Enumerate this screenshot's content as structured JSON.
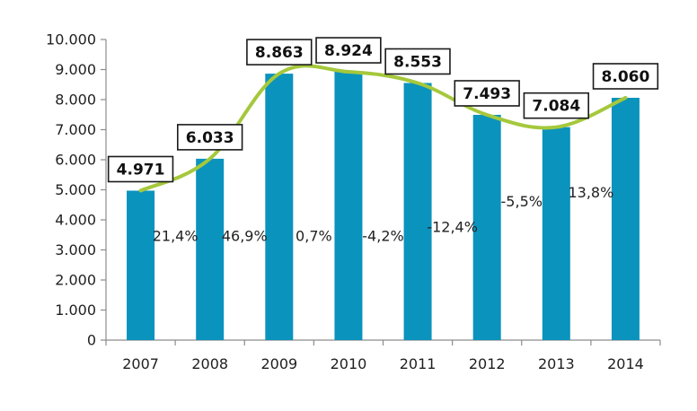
{
  "chart_data": {
    "type": "bar",
    "title": "",
    "xlabel": "",
    "ylabel": "",
    "categories": [
      "2007",
      "2008",
      "2009",
      "2010",
      "2011",
      "2012",
      "2013",
      "2014"
    ],
    "ylim": [
      0,
      10000
    ],
    "yticks": [
      0,
      1000,
      2000,
      3000,
      4000,
      5000,
      6000,
      7000,
      8000,
      9000,
      10000
    ],
    "ytick_labels": [
      "0",
      "1.000",
      "2.000",
      "3.000",
      "4.000",
      "5.000",
      "6.000",
      "7.000",
      "8.000",
      "9.000",
      "10.000"
    ],
    "grid": false,
    "legend": "none",
    "series": [
      {
        "name": "bars",
        "type": "bar",
        "values": [
          4971,
          6033,
          8863,
          8924,
          8553,
          7493,
          7084,
          8060
        ],
        "color": "#0a93bd"
      },
      {
        "name": "trend",
        "type": "line",
        "values": [
          4971,
          6033,
          8863,
          8924,
          8553,
          7493,
          7084,
          8060
        ],
        "color": "#a5c83c"
      }
    ],
    "value_labels": [
      "4.971",
      "6.033",
      "8.863",
      "8.924",
      "8.553",
      "7.493",
      "7.084",
      "8.060"
    ],
    "growth_labels": [
      "21,4%",
      "46,9%",
      "0,7%",
      "-4,2%",
      "-12,4%",
      "-5,5%",
      "13,8%"
    ],
    "growth_label_levels": [
      3300,
      3300,
      3300,
      3300,
      3600,
      4450,
      4750
    ],
    "axis_color": "#8c8c8c"
  }
}
